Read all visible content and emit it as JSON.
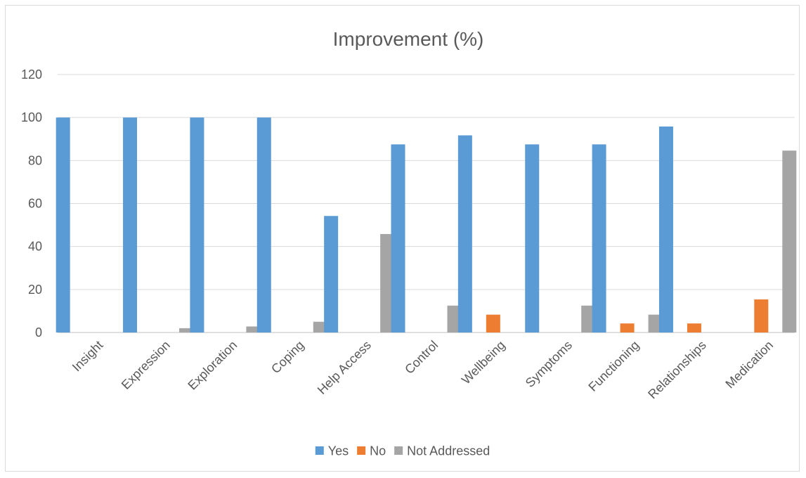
{
  "chart_data": {
    "type": "bar",
    "title": "Improvement (%)",
    "xlabel": "",
    "ylabel": "",
    "ylim": [
      0,
      120
    ],
    "yticks": [
      0,
      20,
      40,
      60,
      80,
      100,
      120
    ],
    "grid": true,
    "legend_position": "bottom",
    "categories": [
      "Insight",
      "Expression",
      "Exploration",
      "Coping",
      "Help Access",
      "Control",
      "Wellbeing",
      "Symptoms",
      "Functioning",
      "Relationships",
      "Medication"
    ],
    "series": [
      {
        "name": "Yes",
        "color": "#5b9bd5",
        "values": [
          100,
          100,
          100,
          100,
          54.2,
          87.5,
          91.7,
          87.5,
          87.5,
          95.8,
          0
        ]
      },
      {
        "name": "No",
        "color": "#ed7d31",
        "values": [
          0,
          0,
          0,
          0,
          0,
          0,
          8.3,
          0,
          4.2,
          4.2,
          15.4
        ]
      },
      {
        "name": "Not Addressed",
        "color": "#a5a5a5",
        "values": [
          0,
          2,
          2.8,
          5,
          45.8,
          12.5,
          0,
          12.5,
          8.3,
          0,
          84.6
        ]
      }
    ]
  }
}
